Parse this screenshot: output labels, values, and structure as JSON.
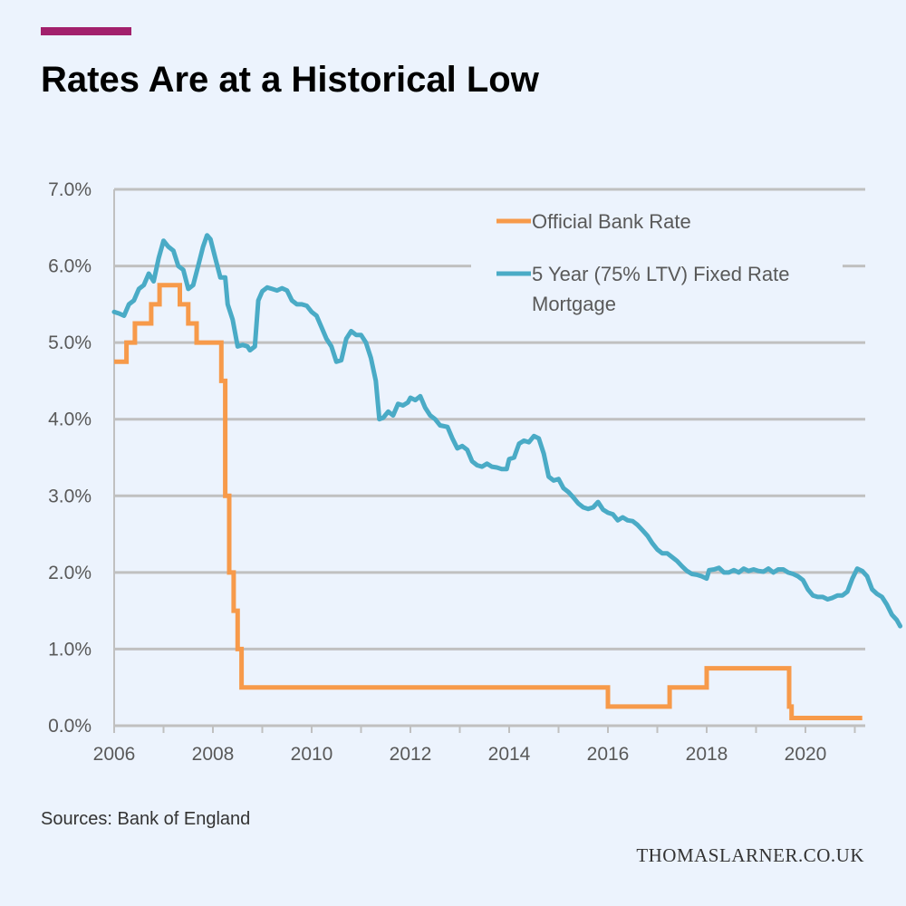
{
  "header": {
    "title": "Rates Are at a Historical Low"
  },
  "footer": {
    "source": "Sources: Bank of England",
    "website": "THOMASLARNER.CO.UK"
  },
  "colors": {
    "accent": "#a2206c",
    "grid": "#c0c0c0",
    "axis_text": "#595959",
    "bank_rate": "#f79a4a",
    "mortgage": "#4aabc6"
  },
  "chart_data": {
    "type": "line",
    "title": "Rates Are at a Historical Low",
    "xlabel": "",
    "ylabel": "",
    "xlim": [
      2006,
      2021.25
    ],
    "ylim": [
      0,
      7
    ],
    "x_ticks": [
      2006,
      2008,
      2010,
      2012,
      2014,
      2016,
      2018,
      2020
    ],
    "x_tick_labels": [
      "2006",
      "2008",
      "2010",
      "2012",
      "2014",
      "2016",
      "2018",
      "2020"
    ],
    "y_ticks": [
      0,
      1,
      2,
      3,
      4,
      5,
      6,
      7
    ],
    "y_tick_labels": [
      "0.0%",
      "1.0%",
      "2.0%",
      "3.0%",
      "4.0%",
      "5.0%",
      "6.0%",
      "7.0%"
    ],
    "grid": "horizontal",
    "legend_position": "top-right",
    "series": [
      {
        "name": "Official Bank Rate",
        "color": "#f79a4a",
        "step": true,
        "points": [
          [
            2006.0,
            4.75
          ],
          [
            2006.25,
            4.75
          ],
          [
            2006.25,
            5.0
          ],
          [
            2006.42,
            5.0
          ],
          [
            2006.42,
            5.25
          ],
          [
            2006.75,
            5.25
          ],
          [
            2006.75,
            5.5
          ],
          [
            2006.92,
            5.5
          ],
          [
            2006.92,
            5.75
          ],
          [
            2007.33,
            5.75
          ],
          [
            2007.33,
            5.5
          ],
          [
            2007.5,
            5.5
          ],
          [
            2007.5,
            5.25
          ],
          [
            2007.67,
            5.25
          ],
          [
            2007.67,
            5.0
          ],
          [
            2008.17,
            5.0
          ],
          [
            2008.17,
            4.5
          ],
          [
            2008.25,
            4.5
          ],
          [
            2008.25,
            3.0
          ],
          [
            2008.33,
            3.0
          ],
          [
            2008.33,
            2.0
          ],
          [
            2008.42,
            2.0
          ],
          [
            2008.42,
            1.5
          ],
          [
            2008.5,
            1.5
          ],
          [
            2008.5,
            1.0
          ],
          [
            2008.58,
            1.0
          ],
          [
            2008.58,
            0.5
          ],
          [
            2016.0,
            0.5
          ],
          [
            2016.0,
            0.25
          ],
          [
            2017.25,
            0.25
          ],
          [
            2017.25,
            0.5
          ],
          [
            2018.0,
            0.5
          ],
          [
            2018.0,
            0.75
          ],
          [
            2019.67,
            0.75
          ],
          [
            2019.67,
            0.25
          ],
          [
            2019.72,
            0.25
          ],
          [
            2019.72,
            0.1
          ],
          [
            2021.15,
            0.1
          ]
        ]
      },
      {
        "name": "5 Year (75% LTV) Fixed Rate Mortgage",
        "legend_lines": [
          "5 Year (75% LTV) Fixed Rate",
          "Mortgage"
        ],
        "color": "#4aabc6",
        "step": false,
        "points": [
          [
            2006.0,
            5.4
          ],
          [
            2006.1,
            5.38
          ],
          [
            2006.2,
            5.35
          ],
          [
            2006.3,
            5.5
          ],
          [
            2006.4,
            5.55
          ],
          [
            2006.5,
            5.7
          ],
          [
            2006.6,
            5.75
          ],
          [
            2006.7,
            5.9
          ],
          [
            2006.8,
            5.8
          ],
          [
            2006.9,
            6.1
          ],
          [
            2007.0,
            6.33
          ],
          [
            2007.1,
            6.25
          ],
          [
            2007.2,
            6.2
          ],
          [
            2007.3,
            6.0
          ],
          [
            2007.4,
            5.95
          ],
          [
            2007.5,
            5.7
          ],
          [
            2007.6,
            5.75
          ],
          [
            2007.7,
            6.0
          ],
          [
            2007.8,
            6.25
          ],
          [
            2007.88,
            6.4
          ],
          [
            2007.95,
            6.35
          ],
          [
            2008.05,
            6.1
          ],
          [
            2008.15,
            5.85
          ],
          [
            2008.25,
            5.85
          ],
          [
            2008.3,
            5.5
          ],
          [
            2008.4,
            5.3
          ],
          [
            2008.5,
            4.95
          ],
          [
            2008.6,
            4.97
          ],
          [
            2008.7,
            4.95
          ],
          [
            2008.75,
            4.9
          ],
          [
            2008.85,
            4.95
          ],
          [
            2008.92,
            5.55
          ],
          [
            2009.0,
            5.67
          ],
          [
            2009.1,
            5.72
          ],
          [
            2009.2,
            5.7
          ],
          [
            2009.3,
            5.68
          ],
          [
            2009.4,
            5.71
          ],
          [
            2009.5,
            5.68
          ],
          [
            2009.6,
            5.55
          ],
          [
            2009.7,
            5.5
          ],
          [
            2009.8,
            5.5
          ],
          [
            2009.9,
            5.48
          ],
          [
            2010.0,
            5.4
          ],
          [
            2010.1,
            5.35
          ],
          [
            2010.2,
            5.2
          ],
          [
            2010.3,
            5.05
          ],
          [
            2010.4,
            4.95
          ],
          [
            2010.5,
            4.75
          ],
          [
            2010.6,
            4.77
          ],
          [
            2010.7,
            5.05
          ],
          [
            2010.8,
            5.15
          ],
          [
            2010.9,
            5.1
          ],
          [
            2011.0,
            5.1
          ],
          [
            2011.1,
            5.0
          ],
          [
            2011.2,
            4.8
          ],
          [
            2011.3,
            4.5
          ],
          [
            2011.37,
            4.0
          ],
          [
            2011.45,
            4.02
          ],
          [
            2011.55,
            4.1
          ],
          [
            2011.65,
            4.05
          ],
          [
            2011.75,
            4.2
          ],
          [
            2011.85,
            4.18
          ],
          [
            2011.95,
            4.22
          ],
          [
            2012.0,
            4.28
          ],
          [
            2012.1,
            4.25
          ],
          [
            2012.2,
            4.3
          ],
          [
            2012.3,
            4.15
          ],
          [
            2012.4,
            4.05
          ],
          [
            2012.5,
            4.0
          ],
          [
            2012.6,
            3.92
          ],
          [
            2012.75,
            3.9
          ],
          [
            2012.85,
            3.75
          ],
          [
            2012.95,
            3.62
          ],
          [
            2013.05,
            3.65
          ],
          [
            2013.15,
            3.6
          ],
          [
            2013.25,
            3.45
          ],
          [
            2013.35,
            3.4
          ],
          [
            2013.45,
            3.38
          ],
          [
            2013.55,
            3.42
          ],
          [
            2013.65,
            3.38
          ],
          [
            2013.75,
            3.37
          ],
          [
            2013.85,
            3.35
          ],
          [
            2013.95,
            3.35
          ],
          [
            2014.0,
            3.48
          ],
          [
            2014.1,
            3.5
          ],
          [
            2014.2,
            3.68
          ],
          [
            2014.3,
            3.72
          ],
          [
            2014.4,
            3.7
          ],
          [
            2014.5,
            3.78
          ],
          [
            2014.6,
            3.75
          ],
          [
            2014.7,
            3.55
          ],
          [
            2014.8,
            3.25
          ],
          [
            2014.9,
            3.2
          ],
          [
            2015.0,
            3.22
          ],
          [
            2015.1,
            3.1
          ],
          [
            2015.2,
            3.05
          ],
          [
            2015.3,
            2.98
          ],
          [
            2015.4,
            2.9
          ],
          [
            2015.5,
            2.85
          ],
          [
            2015.6,
            2.83
          ],
          [
            2015.7,
            2.85
          ],
          [
            2015.8,
            2.92
          ],
          [
            2015.9,
            2.82
          ],
          [
            2016.0,
            2.78
          ],
          [
            2016.1,
            2.76
          ],
          [
            2016.2,
            2.68
          ],
          [
            2016.3,
            2.72
          ],
          [
            2016.4,
            2.68
          ],
          [
            2016.5,
            2.67
          ],
          [
            2016.6,
            2.62
          ],
          [
            2016.7,
            2.55
          ],
          [
            2016.8,
            2.48
          ],
          [
            2016.9,
            2.38
          ],
          [
            2017.0,
            2.3
          ],
          [
            2017.1,
            2.25
          ],
          [
            2017.2,
            2.25
          ],
          [
            2017.3,
            2.2
          ],
          [
            2017.4,
            2.15
          ],
          [
            2017.5,
            2.08
          ],
          [
            2017.6,
            2.02
          ],
          [
            2017.7,
            1.98
          ],
          [
            2017.8,
            1.97
          ],
          [
            2017.9,
            1.95
          ],
          [
            2018.0,
            1.92
          ],
          [
            2018.05,
            2.03
          ],
          [
            2018.15,
            2.04
          ],
          [
            2018.25,
            2.06
          ],
          [
            2018.35,
            2.0
          ],
          [
            2018.45,
            2.0
          ],
          [
            2018.55,
            2.03
          ],
          [
            2018.65,
            2.0
          ],
          [
            2018.75,
            2.05
          ],
          [
            2018.85,
            2.02
          ],
          [
            2018.95,
            2.04
          ],
          [
            2019.05,
            2.02
          ],
          [
            2019.15,
            2.01
          ],
          [
            2019.25,
            2.05
          ],
          [
            2019.35,
            2.0
          ],
          [
            2019.45,
            2.04
          ],
          [
            2019.55,
            2.04
          ],
          [
            2019.65,
            2.0
          ],
          [
            2019.75,
            1.98
          ],
          [
            2019.85,
            1.95
          ],
          [
            2019.95,
            1.9
          ],
          [
            2020.05,
            1.78
          ],
          [
            2020.15,
            1.7
          ],
          [
            2020.25,
            1.68
          ],
          [
            2020.35,
            1.68
          ],
          [
            2020.45,
            1.65
          ],
          [
            2020.55,
            1.67
          ],
          [
            2020.65,
            1.7
          ],
          [
            2020.75,
            1.7
          ],
          [
            2020.85,
            1.75
          ],
          [
            2020.95,
            1.92
          ],
          [
            2021.05,
            2.05
          ],
          [
            2021.15,
            2.02
          ],
          [
            2021.25,
            1.95
          ],
          [
            2021.35,
            1.78
          ],
          [
            2021.45,
            1.72
          ],
          [
            2021.55,
            1.68
          ],
          [
            2021.65,
            1.58
          ],
          [
            2021.75,
            1.45
          ],
          [
            2021.85,
            1.38
          ],
          [
            2021.92,
            1.3
          ]
        ]
      }
    ]
  }
}
